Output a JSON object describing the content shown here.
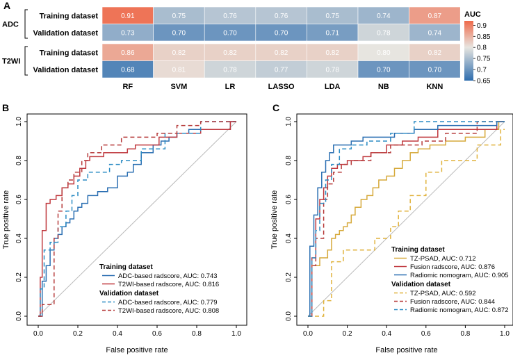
{
  "panel_labels": {
    "a": "A",
    "b": "B",
    "c": "C"
  },
  "chart_data": [
    {
      "type": "heatmap",
      "panel": "A",
      "columns": [
        "RF",
        "SVM",
        "LR",
        "LASSO",
        "LDA",
        "NB",
        "KNN"
      ],
      "groups": [
        {
          "name": "ADC",
          "rows": [
            {
              "label": "Training dataset",
              "values": [
                0.91,
                0.75,
                0.76,
                0.76,
                0.75,
                0.74,
                0.87
              ],
              "labels": [
                "0.91",
                "0.75",
                "0.76",
                "0.76",
                "0.75",
                "0.74",
                "0.87"
              ]
            },
            {
              "label": "Validation dataset",
              "values": [
                0.73,
                0.7,
                0.7,
                0.7,
                0.71,
                0.78,
                0.74
              ],
              "labels": [
                "0.73",
                "0.70",
                "0.70",
                "0.70",
                "0.71",
                "0.78",
                "0.74"
              ]
            }
          ]
        },
        {
          "name": "T2WI",
          "rows": [
            {
              "label": "Training dataset",
              "values": [
                0.86,
                0.82,
                0.82,
                0.82,
                0.82,
                0.8,
                0.82
              ],
              "labels": [
                "0.86",
                "0.82",
                "0.82",
                "0.82",
                "0.82",
                "0.80",
                "0.82"
              ]
            },
            {
              "label": "Validation dataset",
              "values": [
                0.68,
                0.81,
                0.78,
                0.77,
                0.78,
                0.7,
                0.7
              ],
              "labels": [
                "0.68",
                "0.81",
                "0.78",
                "0.77",
                "0.78",
                "0.70",
                "0.70"
              ]
            }
          ]
        }
      ],
      "colorbar": {
        "title": "AUC",
        "range": [
          0.65,
          0.92
        ],
        "ticks": [
          "0.9",
          "0.85",
          "0.8",
          "0.75",
          "0.7",
          "0.65"
        ],
        "tick_values": [
          0.9,
          0.85,
          0.8,
          0.75,
          0.7,
          0.65
        ],
        "low_color": "#2e6dae",
        "mid_color": "#e7e5e0",
        "high_color": "#ef6a4a"
      }
    },
    {
      "type": "line",
      "panel": "B",
      "xlabel": "False positive rate",
      "ylabel": "True positive rate",
      "xlim": [
        0,
        1
      ],
      "ylim": [
        0,
        1
      ],
      "x_ticks": [
        "0.0",
        "0.2",
        "0.4",
        "0.6",
        "0.8",
        "1.0"
      ],
      "y_ticks": [
        "0.0",
        "0.2",
        "0.4",
        "0.6",
        "0.8",
        "1.0"
      ],
      "diagonal_color": "#bbbbbb",
      "legend": [
        {
          "heading": "Training dataset",
          "entries": [
            {
              "label": "ADC-based radscore, AUC: 0.743",
              "color": "#2b6fb2",
              "dash": false
            },
            {
              "label": "T2WI-based radscore, AUC: 0.816",
              "color": "#c0393f",
              "dash": false
            }
          ]
        },
        {
          "heading": "Validation dataset",
          "entries": [
            {
              "label": "ADC-based radscore, AUC: 0.779",
              "color": "#2b8cc4",
              "dash": true
            },
            {
              "label": "T2WI-based radscore, AUC: 0.808",
              "color": "#b63a3a",
              "dash": true
            }
          ]
        }
      ],
      "series": [
        {
          "name": "ADC-based radscore (training)",
          "color": "#2b6fb2",
          "dash": false,
          "x": [
            0,
            0.02,
            0.02,
            0.04,
            0.04,
            0.06,
            0.06,
            0.08,
            0.08,
            0.1,
            0.1,
            0.12,
            0.12,
            0.14,
            0.14,
            0.16,
            0.16,
            0.18,
            0.18,
            0.2,
            0.2,
            0.22,
            0.22,
            0.25,
            0.25,
            0.3,
            0.3,
            0.35,
            0.35,
            0.4,
            0.4,
            0.45,
            0.45,
            0.48,
            0.48,
            0.52,
            0.52,
            0.58,
            0.58,
            0.62,
            0.62,
            0.66,
            0.66,
            0.7,
            0.7,
            0.76,
            0.76,
            0.97,
            0.97,
            1.0
          ],
          "y": [
            0,
            0,
            0.18,
            0.18,
            0.26,
            0.26,
            0.34,
            0.34,
            0.4,
            0.4,
            0.42,
            0.42,
            0.46,
            0.46,
            0.48,
            0.48,
            0.5,
            0.5,
            0.54,
            0.54,
            0.56,
            0.56,
            0.58,
            0.58,
            0.62,
            0.62,
            0.64,
            0.64,
            0.66,
            0.66,
            0.72,
            0.72,
            0.74,
            0.74,
            0.78,
            0.78,
            0.84,
            0.84,
            0.88,
            0.88,
            0.9,
            0.9,
            0.92,
            0.92,
            0.94,
            0.94,
            0.96,
            0.96,
            1.0,
            1.0
          ]
        },
        {
          "name": "T2WI-based radscore (training)",
          "color": "#c0393f",
          "dash": false,
          "x": [
            0,
            0.01,
            0.01,
            0.02,
            0.02,
            0.04,
            0.04,
            0.06,
            0.06,
            0.09,
            0.09,
            0.12,
            0.12,
            0.15,
            0.15,
            0.18,
            0.18,
            0.21,
            0.21,
            0.24,
            0.24,
            0.26,
            0.26,
            0.33,
            0.33,
            0.45,
            0.45,
            0.49,
            0.49,
            0.61,
            0.61,
            0.7,
            0.7,
            0.82,
            0.82,
            0.97,
            0.97,
            1.0
          ],
          "y": [
            0,
            0,
            0.2,
            0.2,
            0.44,
            0.44,
            0.58,
            0.58,
            0.6,
            0.6,
            0.62,
            0.62,
            0.66,
            0.66,
            0.68,
            0.68,
            0.72,
            0.72,
            0.76,
            0.76,
            0.8,
            0.8,
            0.82,
            0.82,
            0.84,
            0.84,
            0.86,
            0.86,
            0.88,
            0.88,
            0.92,
            0.92,
            0.94,
            0.94,
            0.96,
            0.96,
            1.0,
            1.0
          ]
        },
        {
          "name": "ADC-based radscore (validation)",
          "color": "#2b8cc4",
          "dash": true,
          "x": [
            0,
            0.01,
            0.01,
            0.03,
            0.03,
            0.06,
            0.06,
            0.1,
            0.1,
            0.14,
            0.14,
            0.17,
            0.17,
            0.2,
            0.2,
            0.25,
            0.25,
            0.36,
            0.36,
            0.42,
            0.42,
            0.52,
            0.52,
            0.64,
            0.64,
            0.82,
            0.82,
            1.0
          ],
          "y": [
            0,
            0,
            0.14,
            0.14,
            0.34,
            0.34,
            0.38,
            0.38,
            0.46,
            0.46,
            0.54,
            0.54,
            0.62,
            0.62,
            0.7,
            0.7,
            0.74,
            0.74,
            0.78,
            0.78,
            0.8,
            0.8,
            0.86,
            0.86,
            0.94,
            0.94,
            1.0,
            1.0
          ]
        },
        {
          "name": "T2WI-based radscore (validation)",
          "color": "#b63a3a",
          "dash": true,
          "x": [
            0,
            0.02,
            0.02,
            0.08,
            0.08,
            0.1,
            0.1,
            0.12,
            0.12,
            0.15,
            0.15,
            0.18,
            0.18,
            0.22,
            0.22,
            0.25,
            0.25,
            0.32,
            0.32,
            0.42,
            0.42,
            0.6,
            0.6,
            0.7,
            0.7,
            0.82,
            0.82,
            1.0
          ],
          "y": [
            0,
            0,
            0.06,
            0.06,
            0.4,
            0.4,
            0.54,
            0.54,
            0.66,
            0.66,
            0.7,
            0.7,
            0.74,
            0.74,
            0.8,
            0.8,
            0.84,
            0.84,
            0.88,
            0.88,
            0.92,
            0.92,
            0.94,
            0.94,
            0.98,
            0.98,
            1.0,
            1.0
          ]
        }
      ]
    },
    {
      "type": "line",
      "panel": "C",
      "xlabel": "False positive rate",
      "ylabel": "True positive rate",
      "xlim": [
        0,
        1
      ],
      "ylim": [
        0,
        1
      ],
      "x_ticks": [
        "0.0",
        "0.2",
        "0.4",
        "0.6",
        "0.8",
        "1.0"
      ],
      "y_ticks": [
        "0.0",
        "0.2",
        "0.4",
        "0.6",
        "0.8",
        "1.0"
      ],
      "diagonal_color": "#bbbbbb",
      "legend": [
        {
          "heading": "Training dataset",
          "entries": [
            {
              "label": "TZ-PSAD, AUC: 0.712",
              "color": "#d6a93a",
              "dash": false
            },
            {
              "label": "Fusion radscore, AUC: 0.876",
              "color": "#c0393f",
              "dash": false
            },
            {
              "label": "Radiomic nomogram, AUC: 0.905",
              "color": "#2b6fb2",
              "dash": false
            }
          ]
        },
        {
          "heading": "Validation dataset",
          "entries": [
            {
              "label": "TZ-PSAD, AUC: 0.592",
              "color": "#e0b23c",
              "dash": true
            },
            {
              "label": "Fusion radscore, AUC: 0.844",
              "color": "#b63a3a",
              "dash": true
            },
            {
              "label": "Radiomic nomogram, AUC: 0.872",
              "color": "#2b8cc4",
              "dash": true
            }
          ]
        }
      ],
      "series": [
        {
          "name": "TZ-PSAD (training)",
          "color": "#d6a93a",
          "dash": false,
          "x": [
            0,
            0.02,
            0.02,
            0.06,
            0.06,
            0.1,
            0.1,
            0.12,
            0.12,
            0.14,
            0.14,
            0.16,
            0.16,
            0.18,
            0.18,
            0.2,
            0.2,
            0.22,
            0.22,
            0.24,
            0.24,
            0.27,
            0.27,
            0.3,
            0.3,
            0.33,
            0.33,
            0.36,
            0.36,
            0.4,
            0.4,
            0.44,
            0.44,
            0.48,
            0.48,
            0.52,
            0.52,
            0.56,
            0.56,
            0.62,
            0.62,
            0.7,
            0.7,
            0.8,
            0.8,
            0.9,
            0.9,
            0.97,
            0.97,
            1.0
          ],
          "y": [
            0,
            0,
            0.26,
            0.26,
            0.3,
            0.3,
            0.34,
            0.34,
            0.4,
            0.4,
            0.42,
            0.42,
            0.44,
            0.44,
            0.46,
            0.46,
            0.48,
            0.48,
            0.52,
            0.52,
            0.56,
            0.56,
            0.6,
            0.6,
            0.62,
            0.62,
            0.66,
            0.66,
            0.7,
            0.7,
            0.72,
            0.72,
            0.76,
            0.76,
            0.8,
            0.8,
            0.84,
            0.84,
            0.86,
            0.86,
            0.88,
            0.88,
            0.9,
            0.9,
            0.92,
            0.92,
            0.96,
            0.96,
            1.0,
            1.0
          ]
        },
        {
          "name": "Fusion radscore (training)",
          "color": "#c0393f",
          "dash": false,
          "x": [
            0,
            0.02,
            0.02,
            0.04,
            0.04,
            0.06,
            0.06,
            0.08,
            0.08,
            0.1,
            0.1,
            0.12,
            0.12,
            0.15,
            0.15,
            0.2,
            0.2,
            0.28,
            0.28,
            0.32,
            0.32,
            0.4,
            0.4,
            0.48,
            0.48,
            0.56,
            0.56,
            0.66,
            0.66,
            0.96,
            0.96,
            1.0
          ],
          "y": [
            0,
            0,
            0.3,
            0.3,
            0.5,
            0.5,
            0.6,
            0.6,
            0.66,
            0.66,
            0.72,
            0.72,
            0.76,
            0.76,
            0.78,
            0.78,
            0.8,
            0.8,
            0.82,
            0.82,
            0.84,
            0.84,
            0.88,
            0.88,
            0.9,
            0.9,
            0.92,
            0.92,
            0.96,
            0.96,
            1.0,
            1.0
          ]
        },
        {
          "name": "Radiomic nomogram (training)",
          "color": "#2b6fb2",
          "dash": false,
          "x": [
            0,
            0.01,
            0.01,
            0.03,
            0.03,
            0.05,
            0.05,
            0.07,
            0.07,
            0.09,
            0.09,
            0.11,
            0.11,
            0.13,
            0.13,
            0.17,
            0.17,
            0.22,
            0.22,
            0.28,
            0.28,
            0.36,
            0.36,
            0.44,
            0.44,
            0.54,
            0.54,
            0.66,
            0.66,
            0.96,
            0.96,
            1.0
          ],
          "y": [
            0,
            0,
            0.36,
            0.36,
            0.52,
            0.52,
            0.66,
            0.66,
            0.74,
            0.74,
            0.8,
            0.8,
            0.84,
            0.84,
            0.88,
            0.88,
            0.88,
            0.88,
            0.9,
            0.9,
            0.92,
            0.92,
            0.92,
            0.92,
            0.94,
            0.94,
            0.96,
            0.96,
            0.98,
            0.98,
            1.0,
            1.0
          ]
        },
        {
          "name": "TZ-PSAD (validation)",
          "color": "#e0b23c",
          "dash": true,
          "x": [
            0,
            0.08,
            0.08,
            0.12,
            0.12,
            0.18,
            0.18,
            0.26,
            0.26,
            0.34,
            0.34,
            0.42,
            0.42,
            0.46,
            0.46,
            0.52,
            0.52,
            0.6,
            0.6,
            0.68,
            0.68,
            0.86,
            0.86,
            0.98,
            0.98,
            1.0
          ],
          "y": [
            0,
            0,
            0.08,
            0.08,
            0.28,
            0.28,
            0.34,
            0.34,
            0.34,
            0.34,
            0.4,
            0.4,
            0.46,
            0.46,
            0.54,
            0.54,
            0.62,
            0.62,
            0.74,
            0.74,
            0.8,
            0.8,
            0.88,
            0.88,
            0.96,
            0.96
          ]
        },
        {
          "name": "Fusion radscore (validation)",
          "color": "#b63a3a",
          "dash": true,
          "x": [
            0,
            0.02,
            0.02,
            0.04,
            0.04,
            0.08,
            0.08,
            0.1,
            0.1,
            0.13,
            0.13,
            0.17,
            0.17,
            0.22,
            0.22,
            0.32,
            0.32,
            0.42,
            0.42,
            0.58,
            0.58,
            0.7,
            0.7,
            0.86,
            0.86,
            1.0
          ],
          "y": [
            0,
            0,
            0.26,
            0.26,
            0.4,
            0.4,
            0.6,
            0.6,
            0.68,
            0.68,
            0.74,
            0.74,
            0.78,
            0.78,
            0.8,
            0.8,
            0.84,
            0.84,
            0.88,
            0.88,
            0.9,
            0.9,
            0.94,
            0.94,
            1.0,
            1.0
          ]
        },
        {
          "name": "Radiomic nomogram (validation)",
          "color": "#2b8cc4",
          "dash": true,
          "x": [
            0,
            0.02,
            0.02,
            0.04,
            0.04,
            0.06,
            0.06,
            0.09,
            0.09,
            0.12,
            0.12,
            0.16,
            0.16,
            0.22,
            0.22,
            0.3,
            0.3,
            0.42,
            0.42,
            0.54,
            0.54,
            0.68,
            0.68,
            1.0
          ],
          "y": [
            0,
            0,
            0.3,
            0.3,
            0.44,
            0.44,
            0.58,
            0.58,
            0.7,
            0.7,
            0.78,
            0.78,
            0.86,
            0.86,
            0.88,
            0.88,
            0.9,
            0.9,
            0.94,
            0.94,
            1.0,
            1.0,
            1.0,
            1.0
          ]
        }
      ]
    }
  ]
}
